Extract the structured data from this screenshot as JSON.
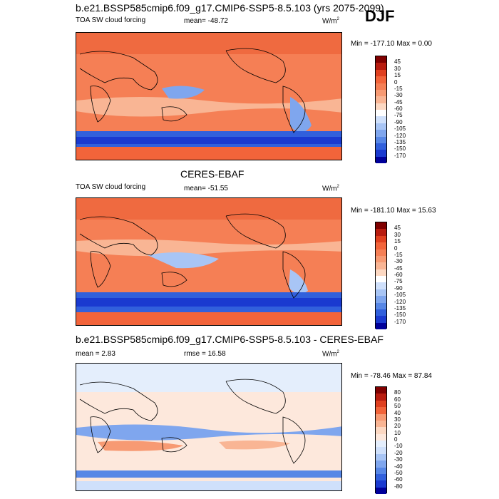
{
  "season": "DJF",
  "panel1": {
    "title": "b.e21.BSSP585cmip6.f09_g17.CMIP6-SSP5-8.5.103 (yrs 2075-2099)",
    "variable": "TOA SW cloud forcing",
    "mean": "mean= -48.72",
    "units_base": "W/m",
    "units_exp": "2",
    "minmax": "Min = -177.10 Max =   0.00",
    "levels": [
      "45",
      "30",
      "15",
      "0",
      "-15",
      "-30",
      "-45",
      "-60",
      "-75",
      "-90",
      "-105",
      "-120",
      "-135",
      "-150",
      "-170"
    ],
    "colors": [
      "#800000",
      "#b81c0f",
      "#e0401f",
      "#f2643a",
      "#f57f55",
      "#f79a73",
      "#f9b594",
      "#fcd8c2",
      "#ffffff",
      "#cfe0fb",
      "#a8c5f5",
      "#7fa6ee",
      "#5787e6",
      "#3160dc",
      "#1a3ad0",
      "#00009a"
    ]
  },
  "panel2": {
    "title": "CERES-EBAF",
    "variable": "TOA SW cloud forcing",
    "mean": "mean= -51.55",
    "units_base": "W/m",
    "units_exp": "2",
    "minmax": "Min = -181.10 Max =  15.63",
    "levels": [
      "45",
      "30",
      "15",
      "0",
      "-15",
      "-30",
      "-45",
      "-60",
      "-75",
      "-90",
      "-105",
      "-120",
      "-135",
      "-150",
      "-170"
    ],
    "colors": [
      "#800000",
      "#b81c0f",
      "#e0401f",
      "#f2643a",
      "#f57f55",
      "#f79a73",
      "#f9b594",
      "#fcd8c2",
      "#ffffff",
      "#cfe0fb",
      "#a8c5f5",
      "#7fa6ee",
      "#5787e6",
      "#3160dc",
      "#1a3ad0",
      "#00009a"
    ]
  },
  "panel3": {
    "title": "b.e21.BSSP585cmip6.f09_g17.CMIP6-SSP5-8.5.103 - CERES-EBAF",
    "mean": "mean =   2.83",
    "rmse": "rmse =  16.58",
    "units_base": "W/m",
    "units_exp": "2",
    "minmax": "Min = -78.46 Max =  87.84",
    "levels": [
      "80",
      "60",
      "50",
      "40",
      "30",
      "20",
      "10",
      "0",
      "-10",
      "-20",
      "-30",
      "-40",
      "-50",
      "-60",
      "-80"
    ],
    "colors": [
      "#800000",
      "#b81c0f",
      "#e0401f",
      "#f2643a",
      "#f79a73",
      "#f9b594",
      "#fcd8c2",
      "#fde8dc",
      "#e4eefc",
      "#cfe0fb",
      "#a8c5f5",
      "#7fa6ee",
      "#5787e6",
      "#3160dc",
      "#1a3ad0",
      "#00009a"
    ]
  }
}
